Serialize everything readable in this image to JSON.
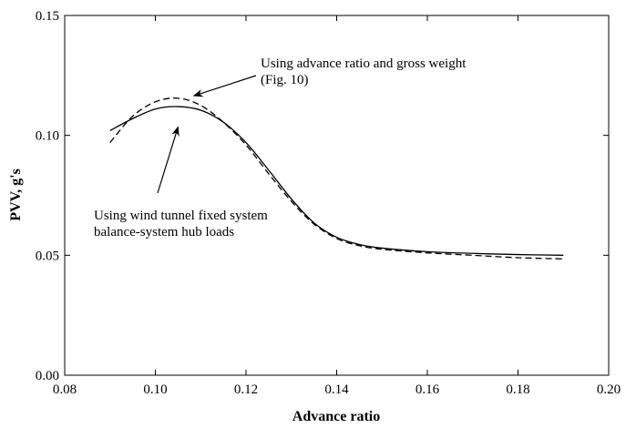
{
  "chart_data": {
    "type": "line",
    "xlabel": "Advance ratio",
    "ylabel": "PVV, g's",
    "xlim": [
      0.08,
      0.2
    ],
    "ylim": [
      0.0,
      0.15
    ],
    "x_ticks": [
      "0.08",
      "0.10",
      "0.12",
      "0.14",
      "0.16",
      "0.18",
      "0.20"
    ],
    "y_ticks": [
      "0.00",
      "0.05",
      "0.10",
      "0.15"
    ],
    "grid": false,
    "series": [
      {
        "style": "solid",
        "color": "#000000",
        "x": [
          0.09,
          0.095,
          0.1,
          0.105,
          0.11,
          0.115,
          0.12,
          0.125,
          0.13,
          0.135,
          0.14,
          0.145,
          0.15,
          0.16,
          0.17,
          0.18,
          0.19
        ],
        "y": [
          0.102,
          0.107,
          0.111,
          0.112,
          0.1105,
          0.1055,
          0.097,
          0.0855,
          0.0735,
          0.0635,
          0.0575,
          0.0545,
          0.053,
          0.0515,
          0.0508,
          0.0503,
          0.05
        ]
      },
      {
        "style": "dashed",
        "color": "#000000",
        "x": [
          0.09,
          0.095,
          0.1,
          0.105,
          0.11,
          0.115,
          0.12,
          0.125,
          0.13,
          0.135,
          0.14,
          0.145,
          0.15,
          0.16,
          0.17,
          0.18,
          0.19
        ],
        "y": [
          0.097,
          0.108,
          0.114,
          0.1155,
          0.1125,
          0.1055,
          0.096,
          0.084,
          0.0725,
          0.063,
          0.057,
          0.054,
          0.0525,
          0.051,
          0.05,
          0.049,
          0.0485
        ]
      }
    ],
    "annotations": [
      {
        "lines": [
          "Using advance ratio and gross weight",
          "(Fig. 10)"
        ],
        "arrow_to": [
          0.1085,
          0.1165
        ]
      },
      {
        "lines": [
          "Using wind tunnel fixed system",
          "balance-system hub loads"
        ],
        "arrow_to": [
          0.105,
          0.1035
        ]
      }
    ]
  }
}
